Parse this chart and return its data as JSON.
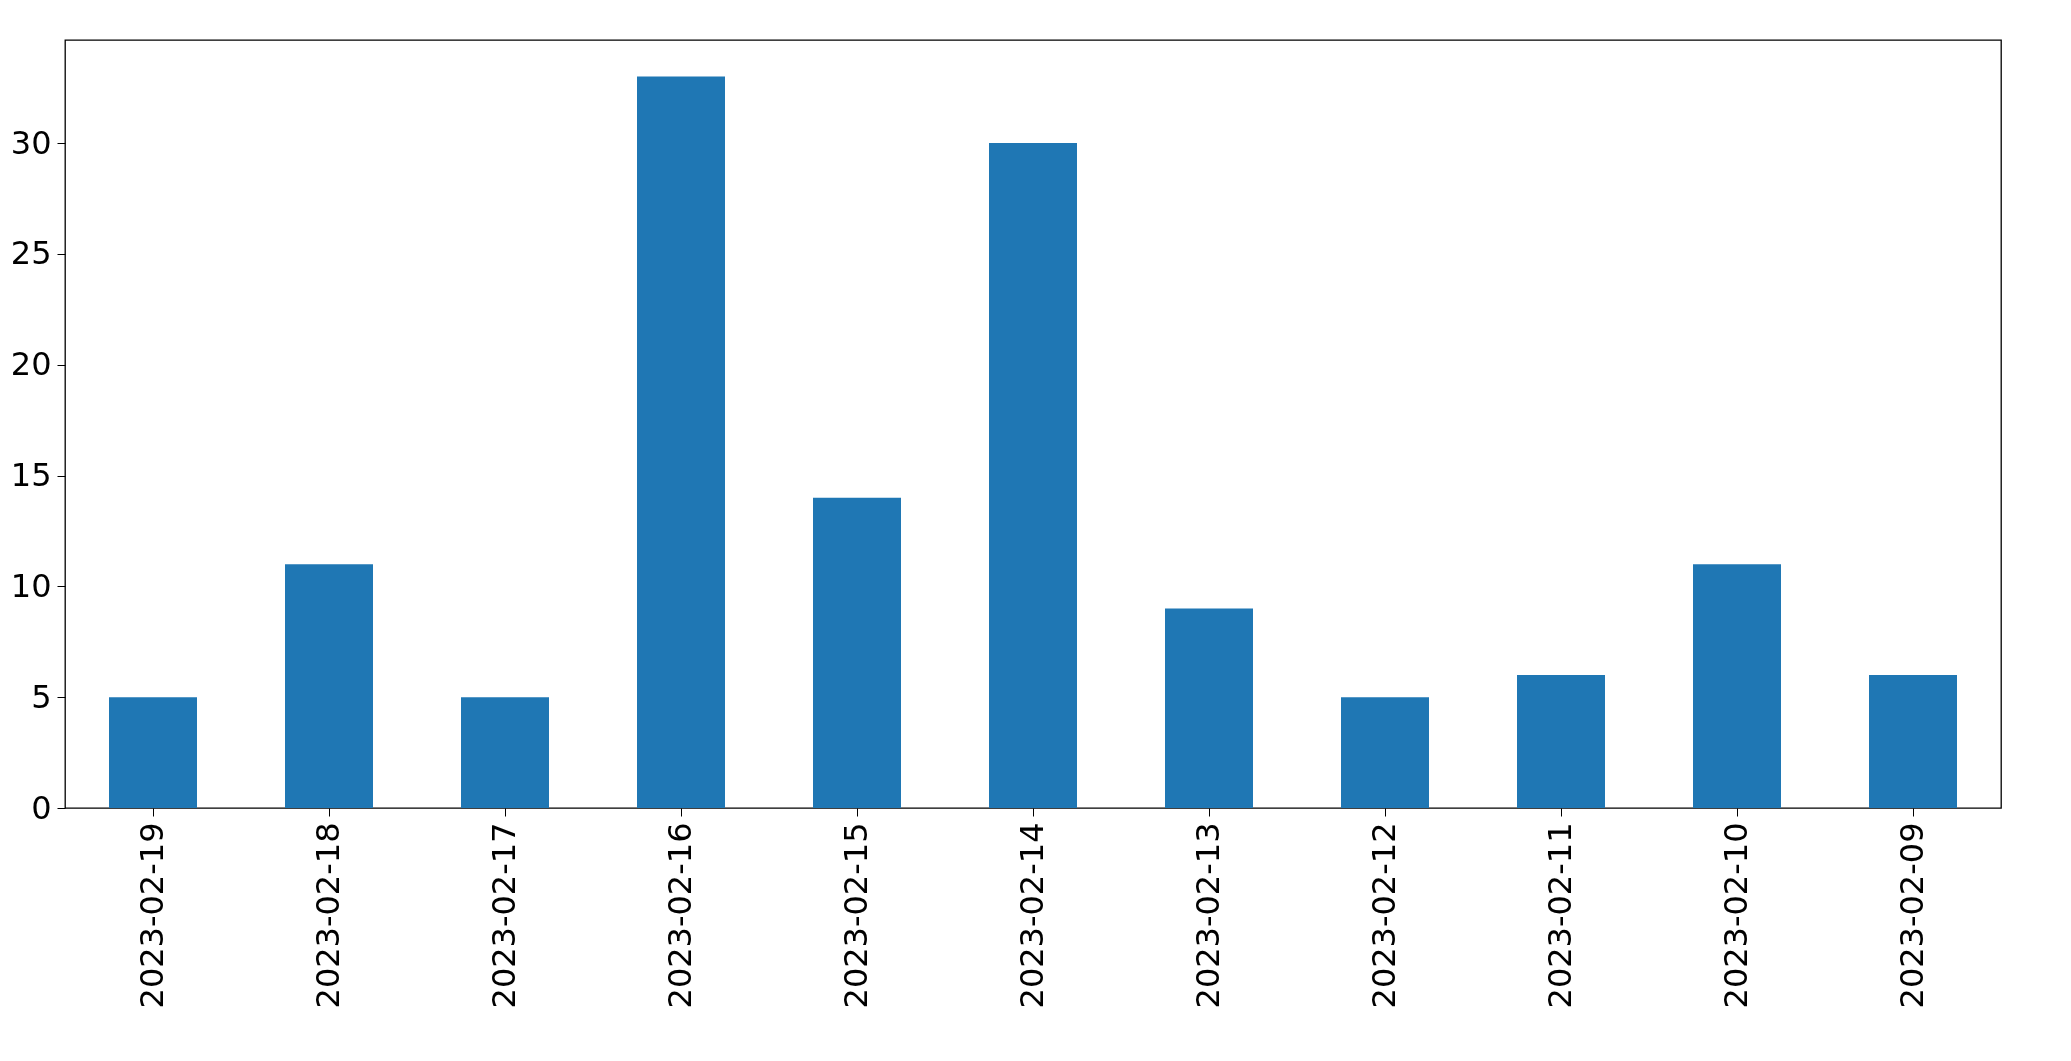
{
  "chart_data": {
    "type": "bar",
    "categories": [
      "2023-02-19",
      "2023-02-18",
      "2023-02-17",
      "2023-02-16",
      "2023-02-15",
      "2023-02-14",
      "2023-02-13",
      "2023-02-12",
      "2023-02-11",
      "2023-02-10",
      "2023-02-09"
    ],
    "values": [
      5,
      11,
      5,
      33,
      14,
      30,
      9,
      5,
      6,
      11,
      6
    ],
    "color": "#1f77b4",
    "ylim": [
      0,
      34.65
    ],
    "yticks": [
      0,
      5,
      10,
      15,
      20,
      25,
      30
    ],
    "grid": false
  }
}
